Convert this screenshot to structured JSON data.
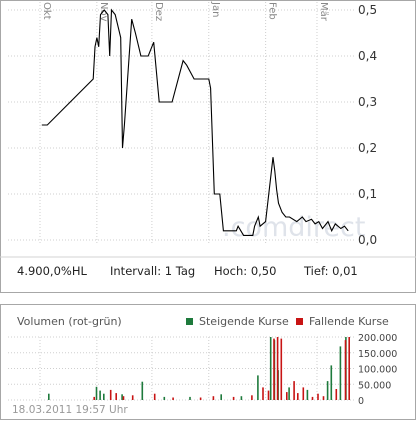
{
  "chart_data": [
    {
      "type": "line",
      "title": "",
      "xlabel": "",
      "ylabel": "",
      "x_tick_labels": [
        "Okt",
        "Nov",
        "Dez",
        "Jan",
        "Feb",
        "Mär"
      ],
      "y_ticks": [
        "0,5",
        "0,4",
        "0,3",
        "0,2",
        "0,1",
        "0,0"
      ],
      "ylim": [
        0,
        0.5
      ],
      "grid": true,
      "watermark": ".comdirect",
      "series": [
        {
          "values": [
            [
              "2010-10-02",
              0.25
            ],
            [
              "2010-10-05",
              0.25
            ],
            [
              "2010-10-30",
              0.35
            ],
            [
              "2010-10-31",
              0.42
            ],
            [
              "2010-11-01",
              0.44
            ],
            [
              "2010-11-02",
              0.42
            ],
            [
              "2010-11-03",
              0.49
            ],
            [
              "2010-11-05",
              0.5
            ],
            [
              "2010-11-07",
              0.49
            ],
            [
              "2010-11-08",
              0.4
            ],
            [
              "2010-11-09",
              0.5
            ],
            [
              "2010-11-11",
              0.49
            ],
            [
              "2010-11-14",
              0.44
            ],
            [
              "2010-11-15",
              0.2
            ],
            [
              "2010-11-16",
              0.25
            ],
            [
              "2010-11-20",
              0.48
            ],
            [
              "2010-11-22",
              0.45
            ],
            [
              "2010-11-25",
              0.4
            ],
            [
              "2010-11-29",
              0.4
            ],
            [
              "2010-12-02",
              0.43
            ],
            [
              "2010-12-05",
              0.3
            ],
            [
              "2010-12-12",
              0.3
            ],
            [
              "2010-12-18",
              0.39
            ],
            [
              "2010-12-20",
              0.38
            ],
            [
              "2010-12-24",
              0.35
            ],
            [
              "2011-01-01",
              0.35
            ],
            [
              "2011-01-02",
              0.33
            ],
            [
              "2011-01-04",
              0.1
            ],
            [
              "2011-01-07",
              0.1
            ],
            [
              "2011-01-09",
              0.02
            ],
            [
              "2011-01-16",
              0.02
            ],
            [
              "2011-01-17",
              0.03
            ],
            [
              "2011-01-20",
              0.01
            ],
            [
              "2011-01-25",
              0.01
            ],
            [
              "2011-01-26",
              0.03
            ],
            [
              "2011-01-28",
              0.05
            ],
            [
              "2011-01-29",
              0.03
            ],
            [
              "2011-02-01",
              0.04
            ],
            [
              "2011-02-05",
              0.18
            ],
            [
              "2011-02-06",
              0.15
            ],
            [
              "2011-02-07",
              0.11
            ],
            [
              "2011-02-08",
              0.08
            ],
            [
              "2011-02-10",
              0.06
            ],
            [
              "2011-02-12",
              0.05
            ],
            [
              "2011-02-14",
              0.05
            ],
            [
              "2011-02-18",
              0.04
            ],
            [
              "2011-02-21",
              0.05
            ],
            [
              "2011-02-23",
              0.04
            ],
            [
              "2011-02-26",
              0.045
            ],
            [
              "2011-02-28",
              0.035
            ],
            [
              "2011-03-02",
              0.04
            ],
            [
              "2011-03-04",
              0.025
            ],
            [
              "2011-03-07",
              0.04
            ],
            [
              "2011-03-09",
              0.02
            ],
            [
              "2011-03-11",
              0.035
            ],
            [
              "2011-03-14",
              0.025
            ],
            [
              "2011-03-16",
              0.03
            ],
            [
              "2011-03-18",
              0.02
            ]
          ]
        }
      ],
      "line_color": "#000000"
    },
    {
      "type": "bar",
      "title": "Volumen (rot-grün)",
      "xlabel": "",
      "ylabel": "",
      "y_ticks": [
        "200.000",
        "150.000",
        "100.000",
        "50.000",
        "0"
      ],
      "ylim": [
        0,
        200000
      ],
      "legend_position": "top-right",
      "series": [
        {
          "name": "Steigende Kurse",
          "color": "#1e7a3c",
          "values": [
            [
              "2010-10-06",
              20000
            ],
            [
              "2010-11-01",
              42000
            ],
            [
              "2010-11-03",
              30000
            ],
            [
              "2010-11-05",
              20000
            ],
            [
              "2010-11-15",
              18000
            ],
            [
              "2010-11-26",
              58000
            ],
            [
              "2010-12-08",
              10000
            ],
            [
              "2010-12-22",
              10000
            ],
            [
              "2011-01-08",
              18000
            ],
            [
              "2011-01-19",
              12000
            ],
            [
              "2011-01-28",
              78000
            ],
            [
              "2011-02-04",
              200000
            ],
            [
              "2011-02-06",
              190000
            ],
            [
              "2011-02-08",
              95000
            ],
            [
              "2011-02-14",
              40000
            ],
            [
              "2011-02-24",
              32000
            ],
            [
              "2011-03-07",
              60000
            ],
            [
              "2011-03-09",
              110000
            ],
            [
              "2011-03-14",
              170000
            ],
            [
              "2011-03-17",
              200000
            ]
          ]
        },
        {
          "name": "Fallende Kurse",
          "color": "#c81414",
          "values": [
            [
              "2010-10-30",
              10000
            ],
            [
              "2010-11-08",
              32000
            ],
            [
              "2010-11-11",
              22000
            ],
            [
              "2010-11-15",
              12000
            ],
            [
              "2010-11-20",
              15000
            ],
            [
              "2010-12-02",
              20000
            ],
            [
              "2010-12-12",
              8000
            ],
            [
              "2010-12-27",
              8000
            ],
            [
              "2011-01-03",
              12000
            ],
            [
              "2011-01-14",
              10000
            ],
            [
              "2011-01-24",
              15000
            ],
            [
              "2011-01-30",
              40000
            ],
            [
              "2011-02-02",
              30000
            ],
            [
              "2011-02-05",
              195000
            ],
            [
              "2011-02-07",
              200000
            ],
            [
              "2011-02-09",
              195000
            ],
            [
              "2011-02-12",
              25000
            ],
            [
              "2011-02-16",
              60000
            ],
            [
              "2011-02-18",
              22000
            ],
            [
              "2011-02-21",
              40000
            ],
            [
              "2011-02-26",
              10000
            ],
            [
              "2011-03-01",
              20000
            ],
            [
              "2011-03-04",
              12000
            ],
            [
              "2011-03-11",
              35000
            ],
            [
              "2011-03-16",
              190000
            ],
            [
              "2011-03-18",
              200000
            ]
          ]
        }
      ]
    }
  ],
  "info": {
    "exchange": "4.900,0%HL",
    "interval": "Intervall: 1 Tag",
    "high": "Hoch:  0,50",
    "low": "Tief:  0,01"
  },
  "footer": {
    "timestamp": "18.03.2011 19:57 Uhr"
  }
}
